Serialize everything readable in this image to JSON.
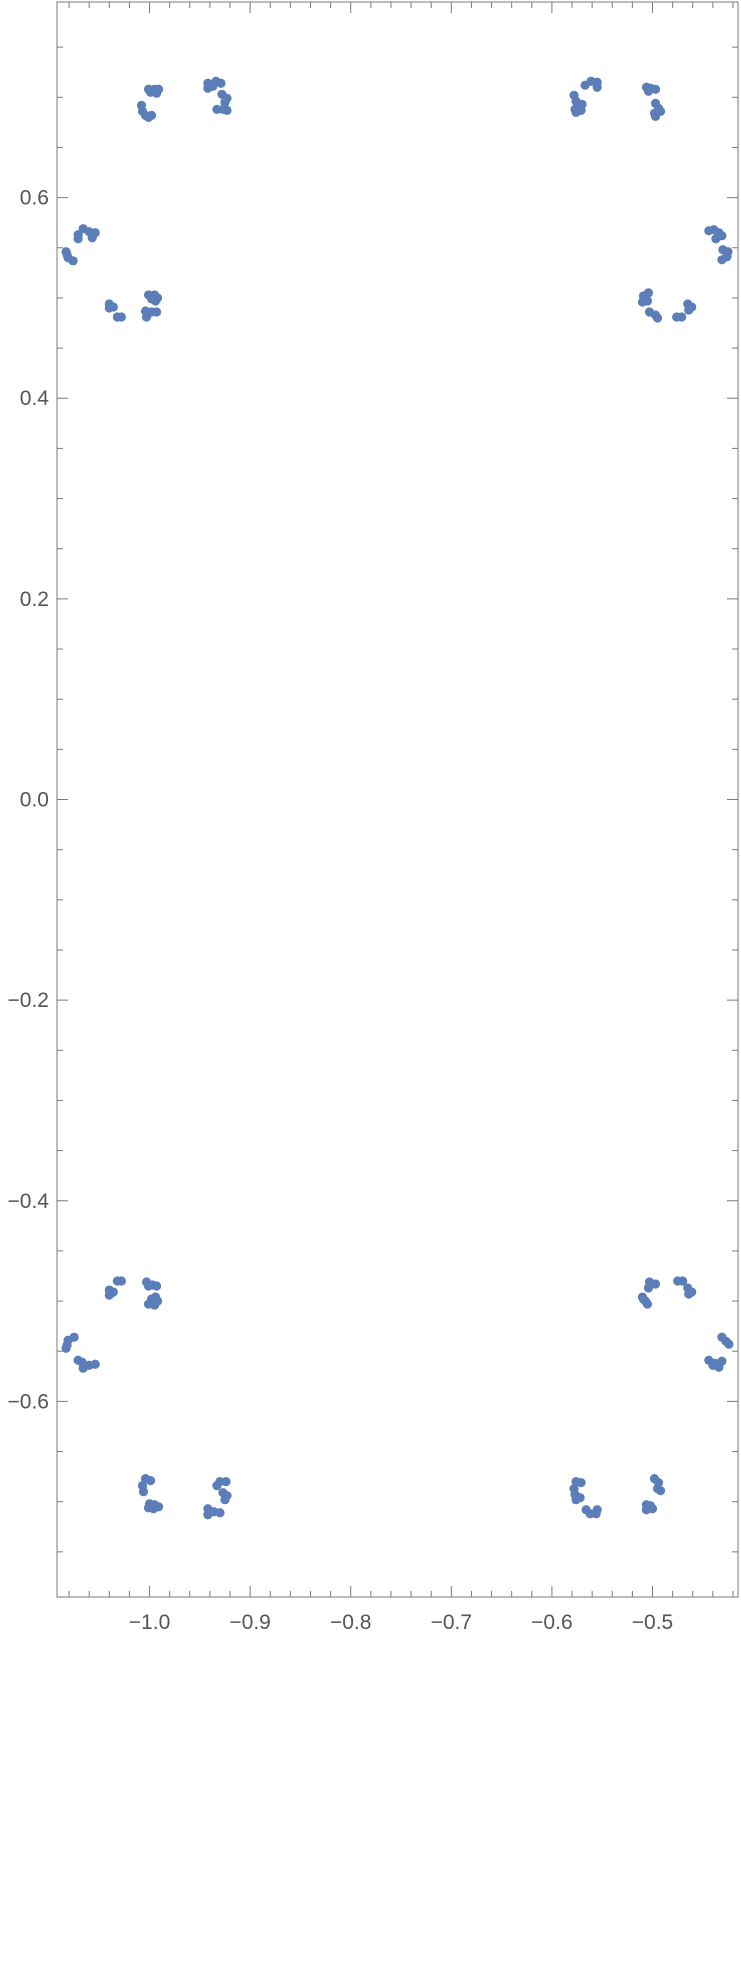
{
  "chart_data": {
    "type": "scatter",
    "title": "",
    "xlabel": "",
    "ylabel": "",
    "xlim": [
      -1.092,
      -0.415
    ],
    "ylim": [
      -0.795,
      0.795
    ],
    "grid": false,
    "marker_color": "#5b7db8",
    "frame_color": "#7a7a7a",
    "tick_label_color": "#555555",
    "x_ticks": [
      {
        "value": -1.0,
        "label": "−1.0"
      },
      {
        "value": -0.9,
        "label": "−0.9"
      },
      {
        "value": -0.8,
        "label": "−0.8"
      },
      {
        "value": -0.7,
        "label": "−0.7"
      },
      {
        "value": -0.6,
        "label": "−0.6"
      },
      {
        "value": -0.5,
        "label": "−0.5"
      }
    ],
    "x_minor_ticks": [
      -1.08,
      -1.06,
      -1.04,
      -1.02,
      -0.98,
      -0.96,
      -0.94,
      -0.92,
      -0.88,
      -0.86,
      -0.84,
      -0.82,
      -0.78,
      -0.76,
      -0.74,
      -0.72,
      -0.68,
      -0.66,
      -0.64,
      -0.62,
      -0.58,
      -0.56,
      -0.54,
      -0.52,
      -0.48,
      -0.46,
      -0.44,
      -0.42
    ],
    "y_ticks": [
      {
        "value": 0.6,
        "label": "0.6"
      },
      {
        "value": 0.4,
        "label": "0.4"
      },
      {
        "value": 0.2,
        "label": "0.2"
      },
      {
        "value": 0.0,
        "label": "0.0"
      },
      {
        "value": -0.2,
        "label": "−0.2"
      },
      {
        "value": -0.4,
        "label": "−0.4"
      },
      {
        "value": -0.6,
        "label": "−0.6"
      }
    ],
    "y_minor_ticks": [
      0.75,
      0.7,
      0.65,
      0.55,
      0.5,
      0.45,
      0.35,
      0.3,
      0.25,
      0.15,
      0.1,
      0.05,
      -0.05,
      -0.1,
      -0.15,
      -0.25,
      -0.3,
      -0.35,
      -0.45,
      -0.5,
      -0.55,
      -0.65,
      -0.7,
      -0.75
    ],
    "series": [
      {
        "points": [
          [
            -0.934,
            0.716
          ],
          [
            -0.929,
            0.714
          ],
          [
            -0.942,
            0.714
          ],
          [
            -0.942,
            0.709
          ],
          [
            -0.937,
            0.711
          ],
          [
            -0.928,
            0.703
          ],
          [
            -0.923,
            0.699
          ],
          [
            -0.925,
            0.695
          ],
          [
            -0.927,
            0.688
          ],
          [
            -0.933,
            0.688
          ],
          [
            -0.923,
            0.687
          ],
          [
            -1.001,
            0.708
          ],
          [
            -0.995,
            0.708
          ],
          [
            -0.991,
            0.708
          ],
          [
            -0.999,
            0.705
          ],
          [
            -0.993,
            0.704
          ],
          [
            -1.008,
            0.692
          ],
          [
            -1.007,
            0.686
          ],
          [
            -1.004,
            0.682
          ],
          [
            -0.998,
            0.682
          ],
          [
            -1.001,
            0.68
          ],
          [
            -1.066,
            0.569
          ],
          [
            -1.06,
            0.566
          ],
          [
            -1.054,
            0.565
          ],
          [
            -1.057,
            0.56
          ],
          [
            -1.071,
            0.563
          ],
          [
            -1.071,
            0.559
          ],
          [
            -1.083,
            0.546
          ],
          [
            -1.081,
            0.54
          ],
          [
            -1.076,
            0.537
          ],
          [
            -1.082,
            0.543
          ],
          [
            -1.04,
            0.494
          ],
          [
            -1.036,
            0.491
          ],
          [
            -1.04,
            0.49
          ],
          [
            -1.032,
            0.481
          ],
          [
            -1.028,
            0.481
          ],
          [
            -1.001,
            0.503
          ],
          [
            -0.995,
            0.503
          ],
          [
            -0.992,
            0.5
          ],
          [
            -0.998,
            0.499
          ],
          [
            -0.994,
            0.497
          ],
          [
            -1.004,
            0.487
          ],
          [
            -0.998,
            0.486
          ],
          [
            -0.993,
            0.486
          ],
          [
            -1.003,
            0.481
          ],
          [
            -0.561,
            0.716
          ],
          [
            -0.555,
            0.715
          ],
          [
            -0.567,
            0.712
          ],
          [
            -0.555,
            0.71
          ],
          [
            -0.578,
            0.702
          ],
          [
            -0.576,
            0.696
          ],
          [
            -0.57,
            0.693
          ],
          [
            -0.577,
            0.688
          ],
          [
            -0.571,
            0.687
          ],
          [
            -0.576,
            0.685
          ],
          [
            -0.506,
            0.71
          ],
          [
            -0.502,
            0.709
          ],
          [
            -0.497,
            0.708
          ],
          [
            -0.504,
            0.706
          ],
          [
            -0.497,
            0.694
          ],
          [
            -0.494,
            0.689
          ],
          [
            -0.498,
            0.684
          ],
          [
            -0.492,
            0.686
          ],
          [
            -0.497,
            0.681
          ],
          [
            -0.444,
            0.567
          ],
          [
            -0.439,
            0.568
          ],
          [
            -0.434,
            0.565
          ],
          [
            -0.437,
            0.559
          ],
          [
            -0.431,
            0.562
          ],
          [
            -0.43,
            0.548
          ],
          [
            -0.425,
            0.546
          ],
          [
            -0.426,
            0.541
          ],
          [
            -0.431,
            0.538
          ],
          [
            -0.504,
            0.505
          ],
          [
            -0.509,
            0.502
          ],
          [
            -0.505,
            0.497
          ],
          [
            -0.51,
            0.496
          ],
          [
            -0.503,
            0.486
          ],
          [
            -0.497,
            0.483
          ],
          [
            -0.495,
            0.48
          ],
          [
            -0.465,
            0.494
          ],
          [
            -0.461,
            0.491
          ],
          [
            -0.464,
            0.488
          ],
          [
            -0.476,
            0.481
          ],
          [
            -0.471,
            0.481
          ],
          [
            -1.032,
            -0.48
          ],
          [
            -1.028,
            -0.48
          ],
          [
            -1.04,
            -0.489
          ],
          [
            -1.036,
            -0.491
          ],
          [
            -1.04,
            -0.494
          ],
          [
            -1.003,
            -0.481
          ],
          [
            -0.997,
            -0.484
          ],
          [
            -0.993,
            -0.485
          ],
          [
            -1.001,
            -0.485
          ],
          [
            -0.994,
            -0.496
          ],
          [
            -0.998,
            -0.498
          ],
          [
            -0.992,
            -0.5
          ],
          [
            -1.001,
            -0.503
          ],
          [
            -0.995,
            -0.504
          ],
          [
            -1.075,
            -0.536
          ],
          [
            -1.081,
            -0.539
          ],
          [
            -1.082,
            -0.544
          ],
          [
            -1.083,
            -0.547
          ],
          [
            -1.071,
            -0.559
          ],
          [
            -1.067,
            -0.561
          ],
          [
            -1.066,
            -0.567
          ],
          [
            -1.06,
            -0.564
          ],
          [
            -1.054,
            -0.563
          ],
          [
            -1.004,
            -0.677
          ],
          [
            -0.999,
            -0.679
          ],
          [
            -1.007,
            -0.684
          ],
          [
            -1.006,
            -0.69
          ],
          [
            -1.0,
            -0.702
          ],
          [
            -0.995,
            -0.703
          ],
          [
            -0.991,
            -0.705
          ],
          [
            -1.001,
            -0.706
          ],
          [
            -0.996,
            -0.707
          ],
          [
            -0.93,
            -0.68
          ],
          [
            -0.924,
            -0.68
          ],
          [
            -0.933,
            -0.684
          ],
          [
            -0.927,
            -0.691
          ],
          [
            -0.923,
            -0.694
          ],
          [
            -0.925,
            -0.698
          ],
          [
            -0.942,
            -0.707
          ],
          [
            -0.936,
            -0.71
          ],
          [
            -0.93,
            -0.711
          ],
          [
            -0.942,
            -0.713
          ],
          [
            -0.503,
            -0.481
          ],
          [
            -0.497,
            -0.483
          ],
          [
            -0.504,
            -0.487
          ],
          [
            -0.475,
            -0.48
          ],
          [
            -0.47,
            -0.48
          ],
          [
            -0.465,
            -0.487
          ],
          [
            -0.461,
            -0.491
          ],
          [
            -0.464,
            -0.493
          ],
          [
            -0.51,
            -0.496
          ],
          [
            -0.507,
            -0.5
          ],
          [
            -0.505,
            -0.503
          ],
          [
            -0.509,
            -0.498
          ],
          [
            -0.431,
            -0.536
          ],
          [
            -0.427,
            -0.54
          ],
          [
            -0.424,
            -0.543
          ],
          [
            -0.444,
            -0.559
          ],
          [
            -0.438,
            -0.562
          ],
          [
            -0.434,
            -0.566
          ],
          [
            -0.431,
            -0.56
          ],
          [
            -0.44,
            -0.564
          ],
          [
            -0.498,
            -0.677
          ],
          [
            -0.494,
            -0.681
          ],
          [
            -0.495,
            -0.687
          ],
          [
            -0.492,
            -0.689
          ],
          [
            -0.506,
            -0.703
          ],
          [
            -0.502,
            -0.704
          ],
          [
            -0.506,
            -0.708
          ],
          [
            -0.5,
            -0.707
          ],
          [
            -0.576,
            -0.68
          ],
          [
            -0.571,
            -0.681
          ],
          [
            -0.578,
            -0.687
          ],
          [
            -0.577,
            -0.693
          ],
          [
            -0.572,
            -0.696
          ],
          [
            -0.576,
            -0.698
          ],
          [
            -0.566,
            -0.708
          ],
          [
            -0.562,
            -0.712
          ],
          [
            -0.556,
            -0.712
          ],
          [
            -0.555,
            -0.708
          ]
        ]
      }
    ]
  }
}
